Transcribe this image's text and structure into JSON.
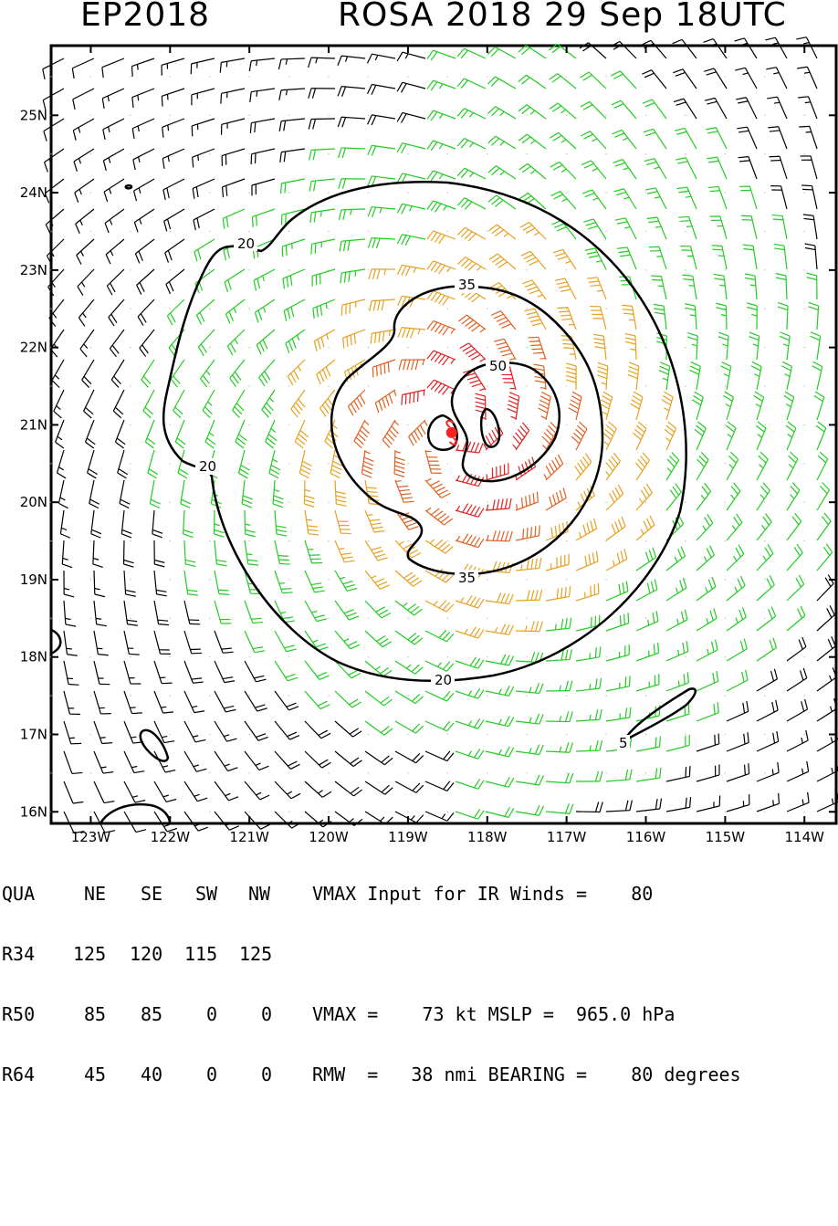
{
  "title": {
    "basin": "EP2018",
    "storm": "ROSA 2018 29 Sep 18UTC"
  },
  "axes": {
    "lon_labels": [
      "123W",
      "122W",
      "121W",
      "120W",
      "119W",
      "118W",
      "117W",
      "116W",
      "115W",
      "114W"
    ],
    "lat_labels": [
      "16N",
      "17N",
      "18N",
      "19N",
      "20N",
      "21N",
      "22N",
      "23N",
      "24N",
      "25N"
    ],
    "lon_range": [
      -123.5,
      -113.6
    ],
    "lat_range": [
      15.85,
      25.9
    ]
  },
  "storm": {
    "center_lon": -118.45,
    "center_lat": 20.9,
    "center_color": "#ff2020"
  },
  "contours": {
    "labels": [
      "20",
      "20",
      "20",
      "35",
      "35",
      "50",
      "5"
    ]
  },
  "colors": {
    "black": "#000000",
    "green": "#22cc22",
    "orange": "#e8a020",
    "darkorange": "#e06020",
    "red": "#e02020"
  },
  "table": {
    "header": [
      "QUA",
      "NE",
      "SE",
      "SW",
      "NW"
    ],
    "rows": [
      [
        "R34",
        "125",
        "120",
        "115",
        "125"
      ],
      [
        "R50",
        "85",
        "85",
        "0",
        "0"
      ],
      [
        "R64",
        "45",
        "40",
        "0",
        "0"
      ]
    ],
    "info": [
      "VMAX Input for IR Winds =    80",
      "",
      "VMAX =    73 kt MSLP =  965.0 hPa",
      "RMW  =   38 nmi BEARING =    80 degrees"
    ]
  }
}
